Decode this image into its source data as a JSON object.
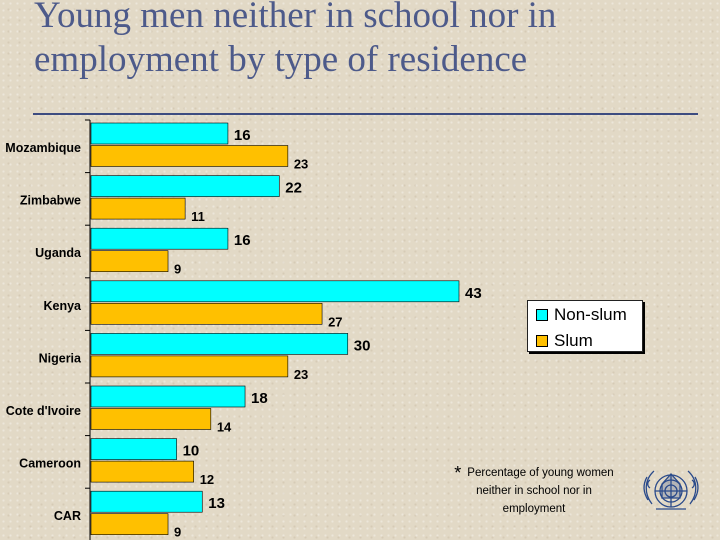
{
  "title_line1": "Young men neither in school nor in",
  "title_line2": "employment by type of residence",
  "colors": {
    "non_slum": "#00ffff",
    "slum": "#ffc000",
    "title": "#4d5a8a",
    "axis": "#000000"
  },
  "chart_data": {
    "type": "bar",
    "orientation": "horizontal",
    "categories": [
      "Mozambique",
      "Zimbabwe",
      "Uganda",
      "Kenya",
      "Nigeria",
      "Cote d'Ivoire",
      "Cameroon",
      "CAR"
    ],
    "series": [
      {
        "name": "Non-slum",
        "values": [
          16,
          22,
          16,
          43,
          30,
          18,
          10,
          13
        ]
      },
      {
        "name": "Slum",
        "values": [
          23,
          11,
          9,
          27,
          23,
          14,
          12,
          9
        ]
      }
    ],
    "xlim": [
      0,
      43
    ],
    "grid": false,
    "legend_position": "right"
  },
  "legend": {
    "non_slum": "Non-slum",
    "slum": "Slum"
  },
  "note": {
    "marker": "*",
    "text": "Percentage of young women neither in school nor in employment"
  },
  "logo_icon": "un-habitat-emblem-icon"
}
